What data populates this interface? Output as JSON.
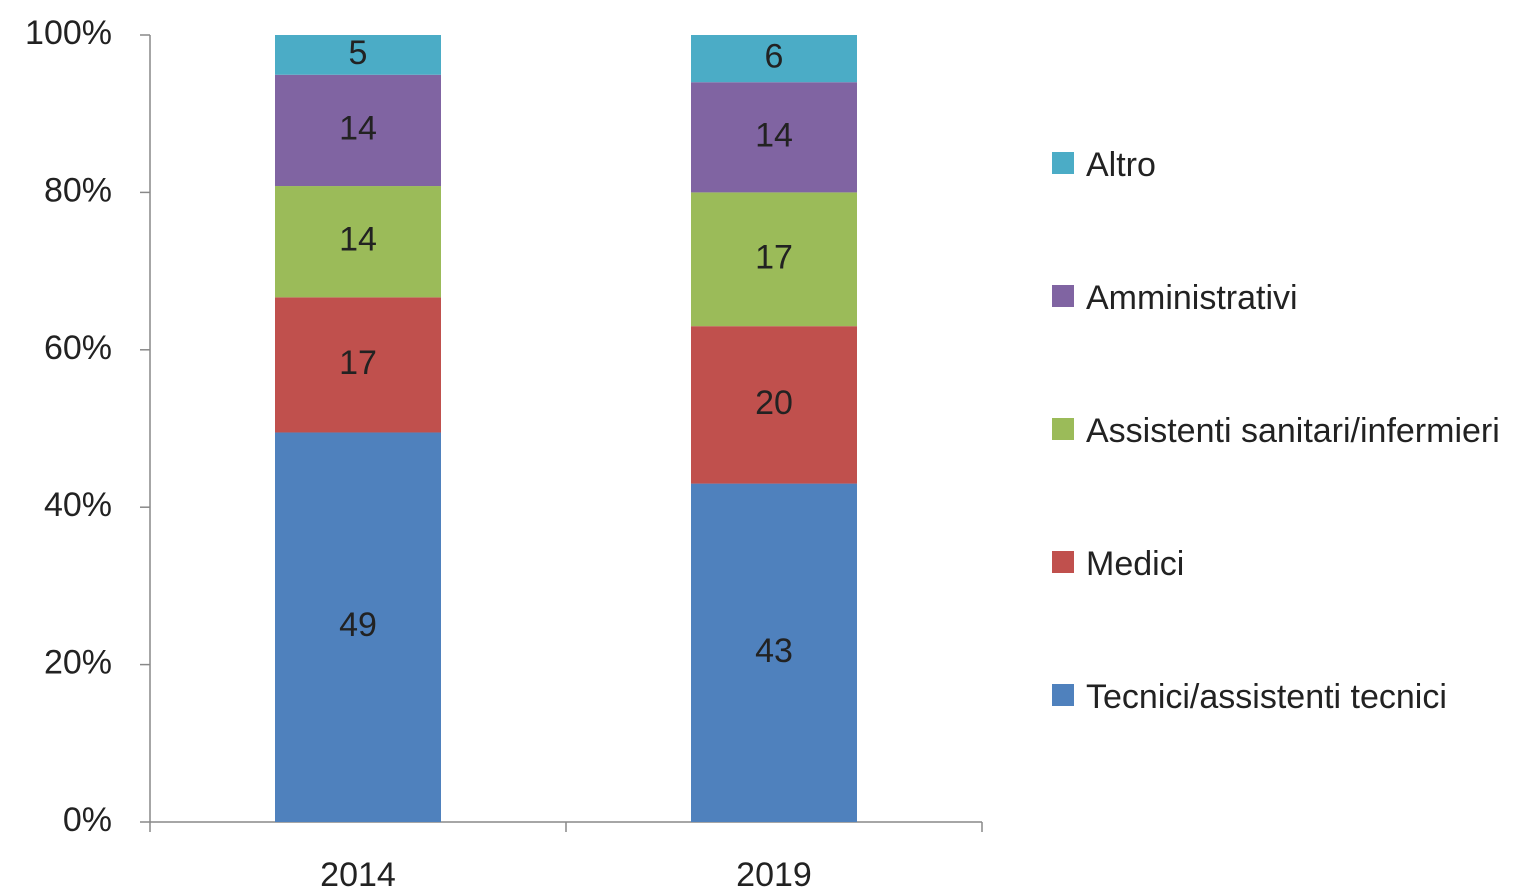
{
  "chart_data": {
    "type": "bar",
    "stacked": "percent",
    "categories": [
      "2014",
      "2019"
    ],
    "series": [
      {
        "name": "Tecnici/assistenti tecnici",
        "color": "#4f81bd",
        "values": [
          49,
          43
        ]
      },
      {
        "name": "Medici",
        "color": "#c0504d",
        "values": [
          17,
          20
        ]
      },
      {
        "name": "Assistenti sanitari/infermieri",
        "color": "#9bbb59",
        "values": [
          14,
          17
        ]
      },
      {
        "name": "Amministrativi",
        "color": "#8064a2",
        "values": [
          14,
          14
        ]
      },
      {
        "name": "Altro",
        "color": "#4bacc6",
        "values": [
          5,
          6
        ]
      }
    ],
    "ylim": [
      0,
      100
    ],
    "yticks": [
      {
        "value": 0,
        "label": "0%"
      },
      {
        "value": 20,
        "label": "20%"
      },
      {
        "value": 40,
        "label": "40%"
      },
      {
        "value": 60,
        "label": "60%"
      },
      {
        "value": 80,
        "label": "80%"
      },
      {
        "value": 100,
        "label": "100%"
      }
    ],
    "legend": "right"
  }
}
